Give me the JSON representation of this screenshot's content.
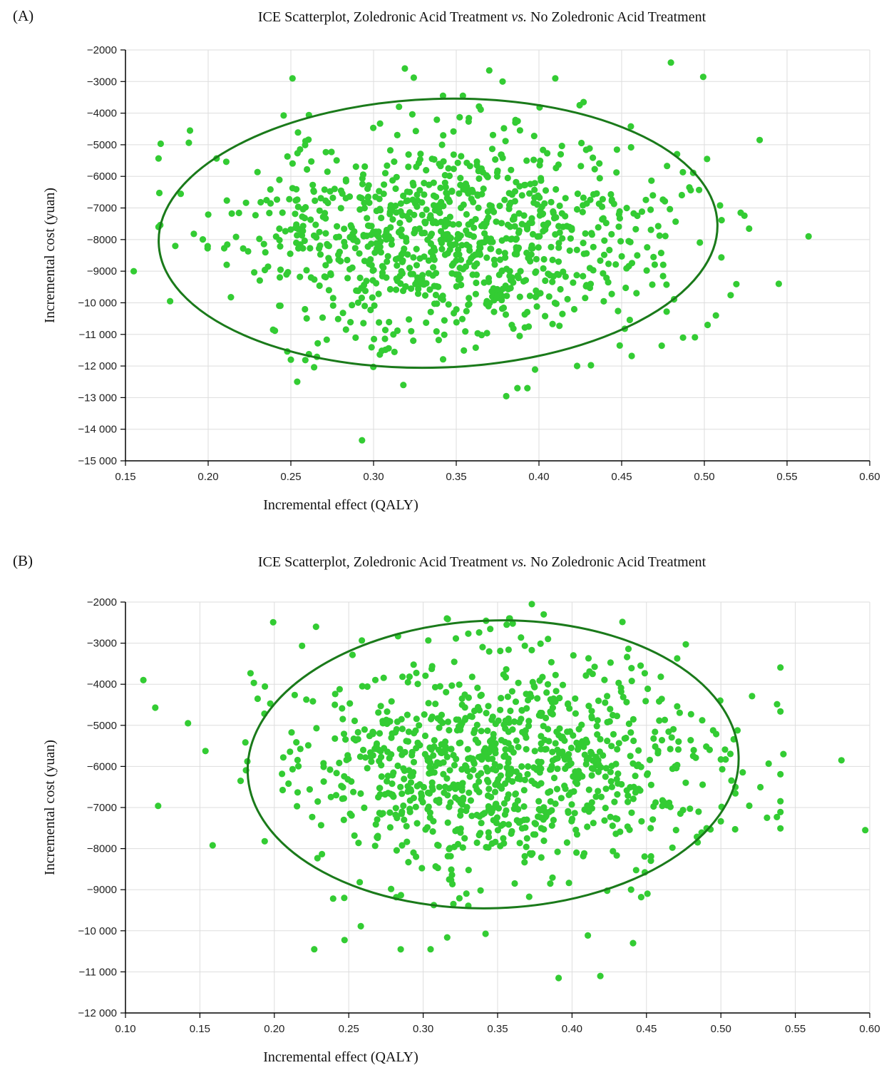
{
  "colors": {
    "points": "#33cc33",
    "ellipse": "#1a7a1a",
    "grid": "#dddddd",
    "axis": "#000000"
  },
  "chart_data": [
    {
      "type": "scatter",
      "panel_label": "(A)",
      "title_parts": [
        "ICE Scatterplot, Zoledronic Acid Treatment ",
        "vs.",
        " No Zoledronic Acid Treatment"
      ],
      "xlabel": "Incremental effect (QALY)",
      "ylabel": "Incremental cost (yuan)",
      "xlim": [
        0.15,
        0.6
      ],
      "ylim": [
        -15000,
        -2000
      ],
      "xticks": [
        0.15,
        0.2,
        0.25,
        0.3,
        0.35,
        0.4,
        0.45,
        0.5,
        0.55,
        0.6
      ],
      "xtick_labels": [
        "0.15",
        "0.20",
        "0.25",
        "0.30",
        "0.35",
        "0.40",
        "0.45",
        "0.50",
        "0.55",
        "0.60"
      ],
      "yticks": [
        -2000,
        -3000,
        -4000,
        -5000,
        -6000,
        -7000,
        -8000,
        -9000,
        -10000,
        -11000,
        -12000,
        -13000,
        -14000,
        -15000
      ],
      "ytick_labels": [
        "−2000",
        "−3000",
        "−4000",
        "−5000",
        "−6000",
        "−7000",
        "−8000",
        "−9000",
        "−10 000",
        "−11 000",
        "−12 000",
        "−13 000",
        "−14 000",
        "−15 000"
      ],
      "grid": true,
      "confidence_ellipse": {
        "cx": 0.339,
        "cy": -7800,
        "rx": 0.169,
        "ry": 4250,
        "rotation_deg": -2
      },
      "cloud": {
        "n": 1000,
        "mean_x": 0.345,
        "sd_x": 0.065,
        "mean_y": -7800,
        "sd_y": 1650,
        "seed": 11
      },
      "outliers": [
        {
          "x": 0.155,
          "y": -9000
        },
        {
          "x": 0.17,
          "y": -7600
        },
        {
          "x": 0.177,
          "y": -9950
        },
        {
          "x": 0.189,
          "y": -4550
        },
        {
          "x": 0.251,
          "y": -2900
        },
        {
          "x": 0.293,
          "y": -14350
        },
        {
          "x": 0.318,
          "y": -12600
        },
        {
          "x": 0.342,
          "y": -3450
        },
        {
          "x": 0.354,
          "y": -3450
        },
        {
          "x": 0.378,
          "y": -3000
        },
        {
          "x": 0.387,
          "y": -12700
        },
        {
          "x": 0.393,
          "y": -12700
        },
        {
          "x": 0.427,
          "y": -3650
        },
        {
          "x": 0.522,
          "y": -7150
        },
        {
          "x": 0.545,
          "y": -9400
        },
        {
          "x": 0.563,
          "y": -7900
        },
        {
          "x": 0.502,
          "y": -10700
        },
        {
          "x": 0.507,
          "y": -10400
        }
      ]
    },
    {
      "type": "scatter",
      "panel_label": "(B)",
      "title_parts": [
        "ICE Scatterplot, Zoledronic Acid Treatment ",
        "vs.",
        " No Zoledronic Acid Treatment"
      ],
      "xlabel": "Incremental effect (QALY)",
      "ylabel": "Incremental cost (yuan)",
      "xlim": [
        0.1,
        0.6
      ],
      "ylim": [
        -12000,
        -2000
      ],
      "xticks": [
        0.1,
        0.15,
        0.2,
        0.25,
        0.3,
        0.35,
        0.4,
        0.45,
        0.5,
        0.55,
        0.6
      ],
      "xtick_labels": [
        "0.10",
        "0.15",
        "0.20",
        "0.25",
        "0.30",
        "0.35",
        "0.40",
        "0.45",
        "0.50",
        "0.55",
        "0.60"
      ],
      "yticks": [
        -2000,
        -3000,
        -4000,
        -5000,
        -6000,
        -7000,
        -8000,
        -9000,
        -10000,
        -11000,
        -12000
      ],
      "ytick_labels": [
        "−2000",
        "−3000",
        "−4000",
        "−5000",
        "−6000",
        "−7000",
        "−8000",
        "−9000",
        "−10 000",
        "−11 000",
        "−12 000"
      ],
      "grid": true,
      "confidence_ellipse": {
        "cx": 0.347,
        "cy": -5950,
        "rx": 0.165,
        "ry": 3500,
        "rotation_deg": -2
      },
      "cloud": {
        "n": 1000,
        "mean_x": 0.355,
        "sd_x": 0.072,
        "mean_y": -5950,
        "sd_y": 1350,
        "seed": 29
      },
      "outliers": [
        {
          "x": 0.112,
          "y": -3900
        },
        {
          "x": 0.142,
          "y": -4950
        },
        {
          "x": 0.373,
          "y": -2050
        },
        {
          "x": 0.381,
          "y": -2300
        },
        {
          "x": 0.391,
          "y": -11150
        },
        {
          "x": 0.419,
          "y": -11100
        },
        {
          "x": 0.441,
          "y": -10300
        },
        {
          "x": 0.305,
          "y": -10450
        },
        {
          "x": 0.542,
          "y": -5700
        },
        {
          "x": 0.581,
          "y": -5850
        },
        {
          "x": 0.597,
          "y": -7550
        },
        {
          "x": 0.531,
          "y": -7250
        },
        {
          "x": 0.228,
          "y": -2600
        },
        {
          "x": 0.247,
          "y": -9200
        }
      ]
    }
  ]
}
